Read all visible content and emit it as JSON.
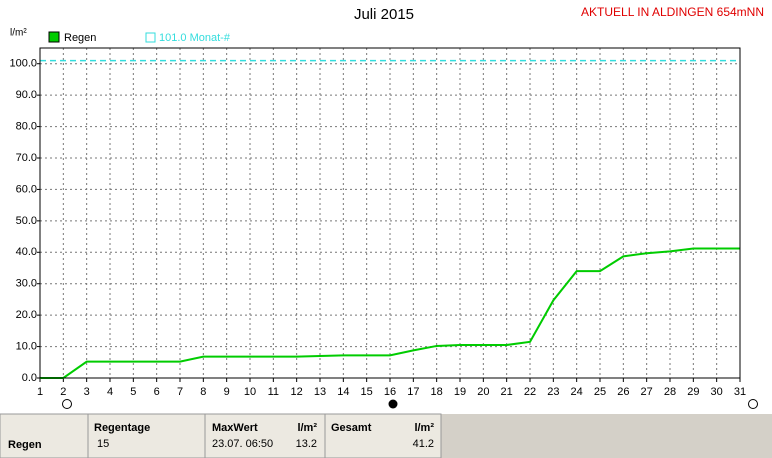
{
  "chart_data": {
    "type": "line",
    "title": "Juli 2015",
    "subtitle": "AKTUELL IN ALDINGEN 654mNN",
    "y_label": "l/m²",
    "x": [
      1,
      2,
      3,
      4,
      5,
      6,
      7,
      8,
      9,
      10,
      11,
      12,
      13,
      14,
      15,
      16,
      17,
      18,
      19,
      20,
      21,
      22,
      23,
      24,
      25,
      26,
      27,
      28,
      29,
      30,
      31
    ],
    "series": [
      {
        "name": "Regen",
        "color": "#00cc00",
        "values": [
          0,
          0,
          5.2,
          5.2,
          5.2,
          5.2,
          5.2,
          6.8,
          6.8,
          6.8,
          6.8,
          6.8,
          7.0,
          7.2,
          7.2,
          7.2,
          8.8,
          10.2,
          10.5,
          10.5,
          10.5,
          11.5,
          24.7,
          34.0,
          34.0,
          38.7,
          39.7,
          40.3,
          41.2,
          41.2,
          41.2
        ]
      }
    ],
    "reference_line": {
      "label": "101.0 Monat-#",
      "value": 101.0,
      "color": "#33dddd"
    },
    "xlim": [
      1,
      31
    ],
    "xticks": [
      1,
      2,
      3,
      4,
      5,
      6,
      7,
      8,
      9,
      10,
      11,
      12,
      13,
      14,
      15,
      16,
      17,
      18,
      19,
      20,
      21,
      22,
      23,
      24,
      25,
      26,
      27,
      28,
      29,
      30,
      31
    ],
    "ylim": [
      0,
      105
    ],
    "yticks": [
      {
        "value": 0,
        "label": "0.0"
      },
      {
        "value": 10,
        "label": "10.0"
      },
      {
        "value": 20,
        "label": "20.0"
      },
      {
        "value": 30,
        "label": "30.0"
      },
      {
        "value": 40,
        "label": "40.0"
      },
      {
        "value": 50,
        "label": "50.0"
      },
      {
        "value": 60,
        "label": "60.0"
      },
      {
        "value": 70,
        "label": "70.0"
      },
      {
        "value": 80,
        "label": "80.0"
      },
      {
        "value": 90,
        "label": "90.0"
      },
      {
        "value": 100,
        "label": "100.0"
      }
    ],
    "grid": true
  },
  "summary": {
    "row_label": "Regen",
    "regentage_header": "Regentage",
    "regentage": "15",
    "maxwert_header": "MaxWert",
    "maxwert_unit": "l/m²",
    "maxwert_time": "23.07.  06:50",
    "maxwert": "13.2",
    "gesamt_header": "Gesamt",
    "gesamt_unit": "l/m²",
    "gesamt": "41.2"
  }
}
